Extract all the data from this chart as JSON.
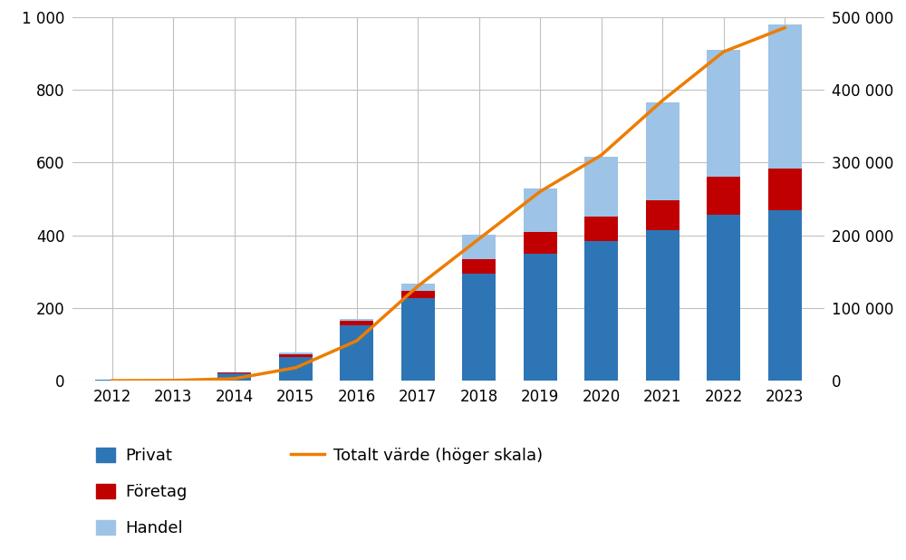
{
  "years": [
    2012,
    2013,
    2014,
    2015,
    2016,
    2017,
    2018,
    2019,
    2020,
    2021,
    2022,
    2023
  ],
  "privat": [
    2,
    3,
    20,
    65,
    152,
    228,
    295,
    350,
    385,
    415,
    455,
    468
  ],
  "foretag": [
    0,
    0,
    2,
    8,
    12,
    18,
    38,
    58,
    65,
    80,
    105,
    115
  ],
  "handel": [
    0,
    0,
    0,
    5,
    5,
    22,
    68,
    120,
    165,
    270,
    350,
    395
  ],
  "total_value": [
    200,
    500,
    3000,
    18000,
    55000,
    130000,
    195000,
    260000,
    310000,
    385000,
    452000,
    485000
  ],
  "privat_color": "#2e75b6",
  "foretag_color": "#c00000",
  "handel_color": "#9dc3e6",
  "line_color": "#ed7d00",
  "background_color": "#ffffff",
  "grid_color": "#c0c0c0",
  "left_ylim": [
    0,
    1000
  ],
  "right_ylim": [
    0,
    500000
  ],
  "left_yticks": [
    0,
    200,
    400,
    600,
    800,
    1000
  ],
  "right_yticks": [
    0,
    100000,
    200000,
    300000,
    400000,
    500000
  ],
  "right_yticklabels": [
    "0",
    "100 000",
    "200 000",
    "300 000",
    "400 000",
    "500 000"
  ],
  "left_yticklabels": [
    "0",
    "200",
    "400",
    "600",
    "800",
    "1 000"
  ],
  "legend_privat": "Privat",
  "legend_foretag": "Företag",
  "legend_handel": "Handel",
  "legend_line": "Totalt värde (höger skala)",
  "bar_width": 0.55
}
